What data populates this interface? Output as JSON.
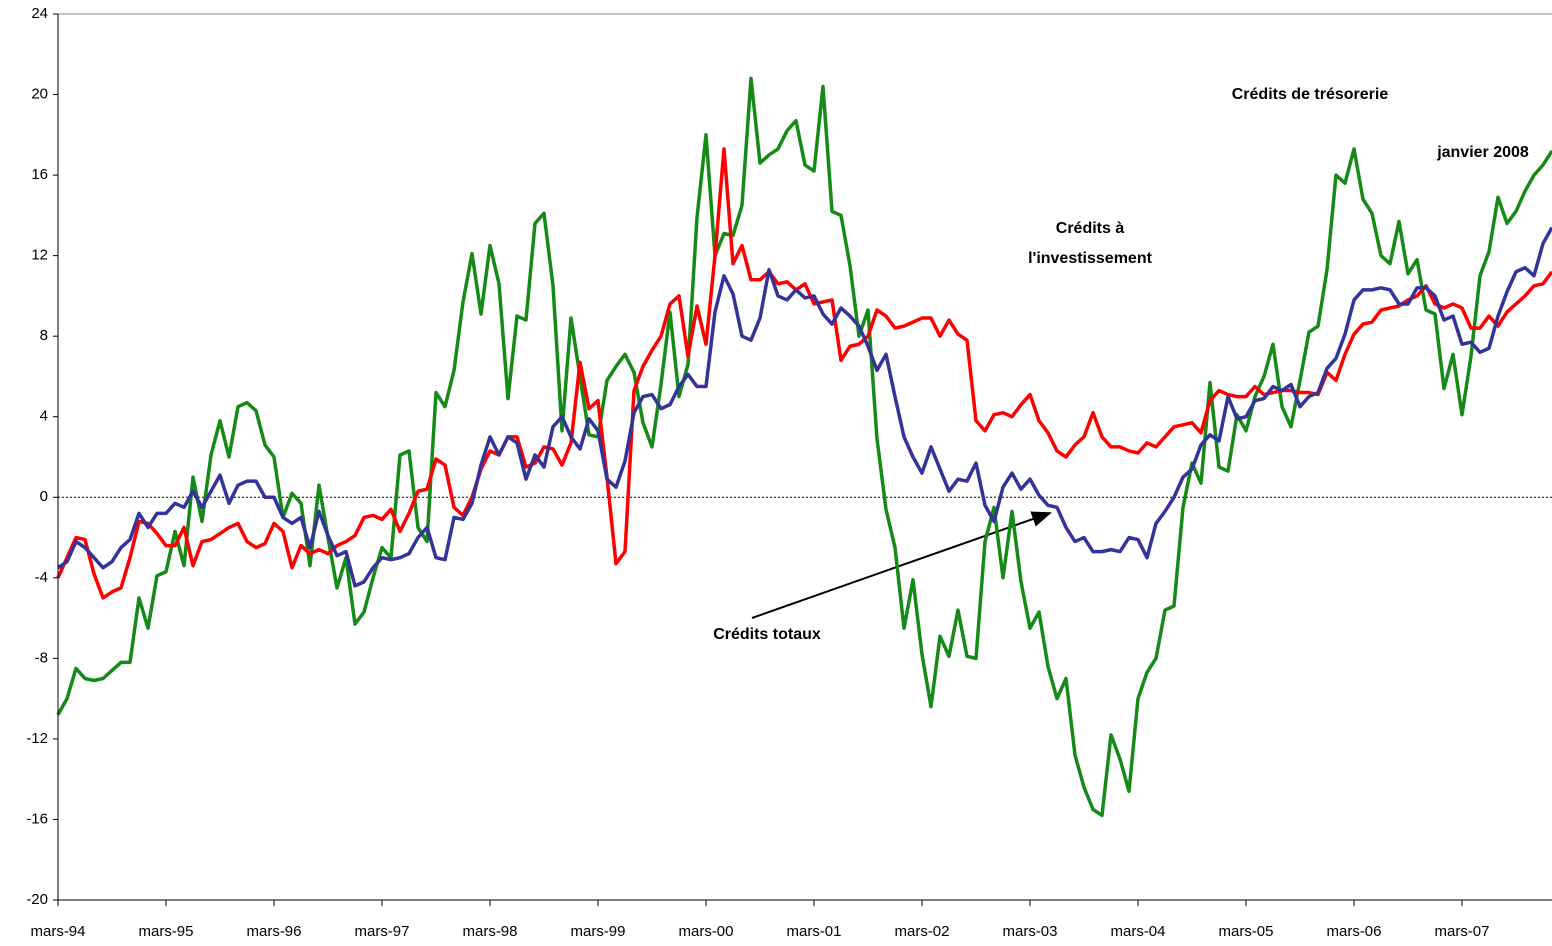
{
  "chart_data": {
    "type": "line",
    "categories": [
      "mars-94",
      null,
      null,
      null,
      null,
      null,
      null,
      null,
      null,
      null,
      null,
      null,
      "mars-95",
      null,
      null,
      null,
      null,
      null,
      null,
      null,
      null,
      null,
      null,
      null,
      "mars-96",
      null,
      null,
      null,
      null,
      null,
      null,
      null,
      null,
      null,
      null,
      null,
      "mars-97",
      null,
      null,
      null,
      null,
      null,
      null,
      null,
      null,
      null,
      null,
      null,
      "mars-98",
      null,
      null,
      null,
      null,
      null,
      null,
      null,
      null,
      null,
      null,
      null,
      "mars-99",
      null,
      null,
      null,
      null,
      null,
      null,
      null,
      null,
      null,
      null,
      null,
      "mars-00",
      null,
      null,
      null,
      null,
      null,
      null,
      null,
      null,
      null,
      null,
      null,
      "mars-01",
      null,
      null,
      null,
      null,
      null,
      null,
      null,
      null,
      null,
      null,
      null,
      "mars-02",
      null,
      null,
      null,
      null,
      null,
      null,
      null,
      null,
      null,
      null,
      null,
      "mars-03",
      null,
      null,
      null,
      null,
      null,
      null,
      null,
      null,
      null,
      null,
      null,
      "mars-04",
      null,
      null,
      null,
      null,
      null,
      null,
      null,
      null,
      null,
      null,
      null,
      "mars-05",
      null,
      null,
      null,
      null,
      null,
      null,
      null,
      null,
      null,
      null,
      null,
      "mars-06",
      null,
      null,
      null,
      null,
      null,
      null,
      null,
      null,
      null,
      null,
      null,
      "mars-07",
      null,
      null,
      null,
      null,
      null,
      null,
      null,
      null,
      null,
      null
    ],
    "series": [
      {
        "name": "Crédits de trésorerie",
        "color": "#168a16",
        "values": [
          -10.8,
          -10,
          -8.5,
          -9,
          -9.1,
          -9,
          -8.6,
          -8.2,
          -8.2,
          -5,
          -6.5,
          -3.9,
          -3.7,
          -1.7,
          -3.4,
          1,
          -1.2,
          2.1,
          3.8,
          2,
          4.5,
          4.7,
          4.3,
          2.6,
          2,
          -1,
          0.2,
          -0.3,
          -3.4,
          0.6,
          -2,
          -4.5,
          -3,
          -6.3,
          -5.7,
          -4,
          -2.5,
          -3,
          2.1,
          2.3,
          -1.5,
          -2.2,
          5.2,
          4.5,
          6.3,
          9.7,
          12.1,
          9.1,
          12.5,
          10.6,
          4.9,
          9,
          8.8,
          13.6,
          14.1,
          10.5,
          3.3,
          8.9,
          6,
          3.1,
          3,
          5.8,
          6.5,
          7.1,
          6.2,
          3.7,
          2.5,
          5.6,
          9.2,
          5,
          6.6,
          13.9,
          18,
          12,
          13.1,
          13,
          14.5,
          20.8,
          16.6,
          17,
          17.3,
          18.2,
          18.7,
          16.5,
          16.2,
          20.4,
          14.2,
          14,
          11.5,
          8,
          9.3,
          2.9,
          -0.6,
          -2.5,
          -6.5,
          -4.1,
          -7.8,
          -10.4,
          -6.9,
          -7.9,
          -5.6,
          -7.9,
          -8,
          -2.2,
          -0.5,
          -4,
          -0.7,
          -4.2,
          -6.5,
          -5.7,
          -8.4,
          -10,
          -9,
          -12.8,
          -14.4,
          -15.5,
          -15.8,
          -11.8,
          -13,
          -14.6,
          -10,
          -8.7,
          -8,
          -5.6,
          -5.4,
          -0.5,
          1.7,
          0.7,
          5.7,
          1.5,
          1.3,
          4.1,
          3.3,
          5,
          6,
          7.6,
          4.5,
          3.5,
          5.8,
          8.2,
          8.5,
          11.3,
          16,
          15.6,
          17.3,
          14.8,
          14.1,
          12,
          11.6,
          13.7,
          11.1,
          11.8,
          9.3,
          9.1,
          5.4,
          7.1,
          4.1,
          7,
          11,
          12.2,
          14.9,
          13.6,
          14.2,
          15.2,
          16,
          16.5,
          17.2
        ]
      },
      {
        "name": "Crédits à l'investissement",
        "color": "#ff0000",
        "values": [
          -4,
          -3,
          -2,
          -2.1,
          -3.8,
          -5,
          -4.7,
          -4.5,
          -3,
          -1.2,
          -1.3,
          -1.8,
          -2.4,
          -2.4,
          -1.5,
          -3.4,
          -2.2,
          -2.1,
          -1.8,
          -1.5,
          -1.3,
          -2.2,
          -2.5,
          -2.3,
          -1.3,
          -1.7,
          -3.5,
          -2.4,
          -2.8,
          -2.6,
          -2.8,
          -2.4,
          -2.2,
          -1.9,
          -1,
          -0.9,
          -1.1,
          -0.6,
          -1.7,
          -0.8,
          0.3,
          0.4,
          1.9,
          1.6,
          -0.5,
          -0.9,
          0,
          1.4,
          2.3,
          2.1,
          3,
          3,
          1.5,
          1.7,
          2.5,
          2.4,
          1.6,
          2.7,
          6.7,
          4.4,
          4.8,
          1,
          -3.3,
          -2.7,
          5.3,
          6.5,
          7.3,
          8,
          9.6,
          10,
          7,
          9.5,
          7.6,
          12,
          17.3,
          11.6,
          12.5,
          10.8,
          10.8,
          11.2,
          10.6,
          10.7,
          10.3,
          10.6,
          9.6,
          9.7,
          9.8,
          6.8,
          7.5,
          7.6,
          8,
          9.3,
          9,
          8.4,
          8.5,
          8.7,
          8.9,
          8.9,
          8,
          8.8,
          8.1,
          7.8,
          3.8,
          3.3,
          4.1,
          4.2,
          4,
          4.6,
          5.1,
          3.8,
          3.2,
          2.3,
          2,
          2.6,
          3,
          4.2,
          3,
          2.5,
          2.5,
          2.3,
          2.2,
          2.7,
          2.5,
          3,
          3.5,
          3.6,
          3.7,
          3.2,
          4.8,
          5.3,
          5.1,
          5,
          5,
          5.5,
          5.1,
          5.2,
          5.3,
          5.3,
          5.2,
          5.2,
          5.1,
          6.2,
          5.8,
          7.1,
          8.1,
          8.6,
          8.7,
          9.3,
          9.4,
          9.5,
          9.8,
          10,
          10.5,
          9.6,
          9.4,
          9.6,
          9.4,
          8.4,
          8.4,
          9,
          8.5,
          9.2,
          9.6,
          10,
          10.5,
          10.6,
          11.2
        ]
      },
      {
        "name": "Crédits totaux",
        "color": "#333399",
        "values": [
          -3.5,
          -3.2,
          -2.2,
          -2.5,
          -3,
          -3.5,
          -3.2,
          -2.5,
          -2.1,
          -0.8,
          -1.5,
          -0.8,
          -0.8,
          -0.3,
          -0.5,
          0.3,
          -0.5,
          0.3,
          1.1,
          -0.3,
          0.6,
          0.8,
          0.8,
          0,
          0,
          -1,
          -1.3,
          -1,
          -2.5,
          -0.7,
          -1.9,
          -2.9,
          -2.7,
          -4.4,
          -4.2,
          -3.5,
          -3,
          -3.1,
          -3,
          -2.8,
          -2,
          -1.5,
          -3,
          -3.1,
          -1,
          -1.1,
          -0.3,
          1.6,
          3,
          2.1,
          3,
          2.7,
          0.9,
          2.1,
          1.5,
          3.5,
          4,
          3,
          2.4,
          3.9,
          3.3,
          0.9,
          0.5,
          1.8,
          4.2,
          5,
          5.1,
          4.4,
          4.6,
          5.5,
          6.1,
          5.5,
          5.5,
          9.2,
          11,
          10.1,
          8,
          7.8,
          8.9,
          11.3,
          10,
          9.8,
          10.3,
          9.9,
          10,
          9.1,
          8.6,
          9.4,
          9,
          8.5,
          7.5,
          6.3,
          7.1,
          5,
          3,
          2,
          1.2,
          2.5,
          1.4,
          0.3,
          0.9,
          0.8,
          1.7,
          -0.4,
          -1.2,
          0.5,
          1.2,
          0.4,
          0.9,
          0.1,
          -0.4,
          -0.5,
          -1.5,
          -2.2,
          -2,
          -2.7,
          -2.7,
          -2.6,
          -2.7,
          -2,
          -2.1,
          -3,
          -1.3,
          -0.7,
          0,
          1,
          1.4,
          2.6,
          3.1,
          2.8,
          5,
          3.9,
          4,
          4.8,
          4.9,
          5.5,
          5.3,
          5.6,
          4.5,
          5,
          5.2,
          6.4,
          6.9,
          8.1,
          9.8,
          10.3,
          10.3,
          10.4,
          10.3,
          9.6,
          9.6,
          10.4,
          10.4,
          10,
          8.8,
          9,
          7.6,
          7.7,
          7.2,
          7.4,
          9,
          10.2,
          11.2,
          11.4,
          11,
          12.6,
          13.4
        ]
      }
    ],
    "annotations": [
      "Crédits de trésorerie",
      [
        "Crédits à",
        "l'investissement"
      ],
      "janvier 2008",
      "Crédits totaux"
    ],
    "ylim": [
      -20,
      24
    ],
    "yticks": [
      24,
      20,
      16,
      12,
      8,
      4,
      0,
      -4,
      -8,
      -12,
      -16,
      -20
    ],
    "grid": false
  }
}
